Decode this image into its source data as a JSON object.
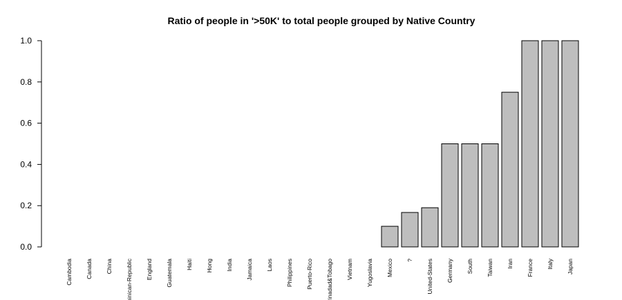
{
  "chart_data": {
    "type": "bar",
    "title": "Ratio of people in '>50K' to total people grouped by Native Country",
    "xlabel": "",
    "ylabel": "",
    "ylim": [
      0,
      1.0
    ],
    "yticks": [
      "0.0",
      "0.2",
      "0.4",
      "0.6",
      "0.8",
      "1.0"
    ],
    "categories": [
      "Cambodia",
      "Canada",
      "China",
      "Dominican-Republic",
      "England",
      "Guatemala",
      "Haiti",
      "Hong",
      "India",
      "Jamaica",
      "Laos",
      "Philippines",
      "Puerto-Rico",
      "Trinadad&Tobago",
      "Vietnam",
      "Yugoslavia",
      "Mexico",
      "?",
      "United-States",
      "Germany",
      "South",
      "Taiwan",
      "Iran",
      "France",
      "Italy",
      "Japan"
    ],
    "values": [
      0,
      0,
      0,
      0,
      0,
      0,
      0,
      0,
      0,
      0,
      0,
      0,
      0,
      0,
      0,
      0,
      0.1,
      0.167,
      0.19,
      0.5,
      0.5,
      0.5,
      0.75,
      1.0,
      1.0,
      1.0
    ],
    "bar_color": "#bebebe",
    "grid": false,
    "legend": "none"
  }
}
